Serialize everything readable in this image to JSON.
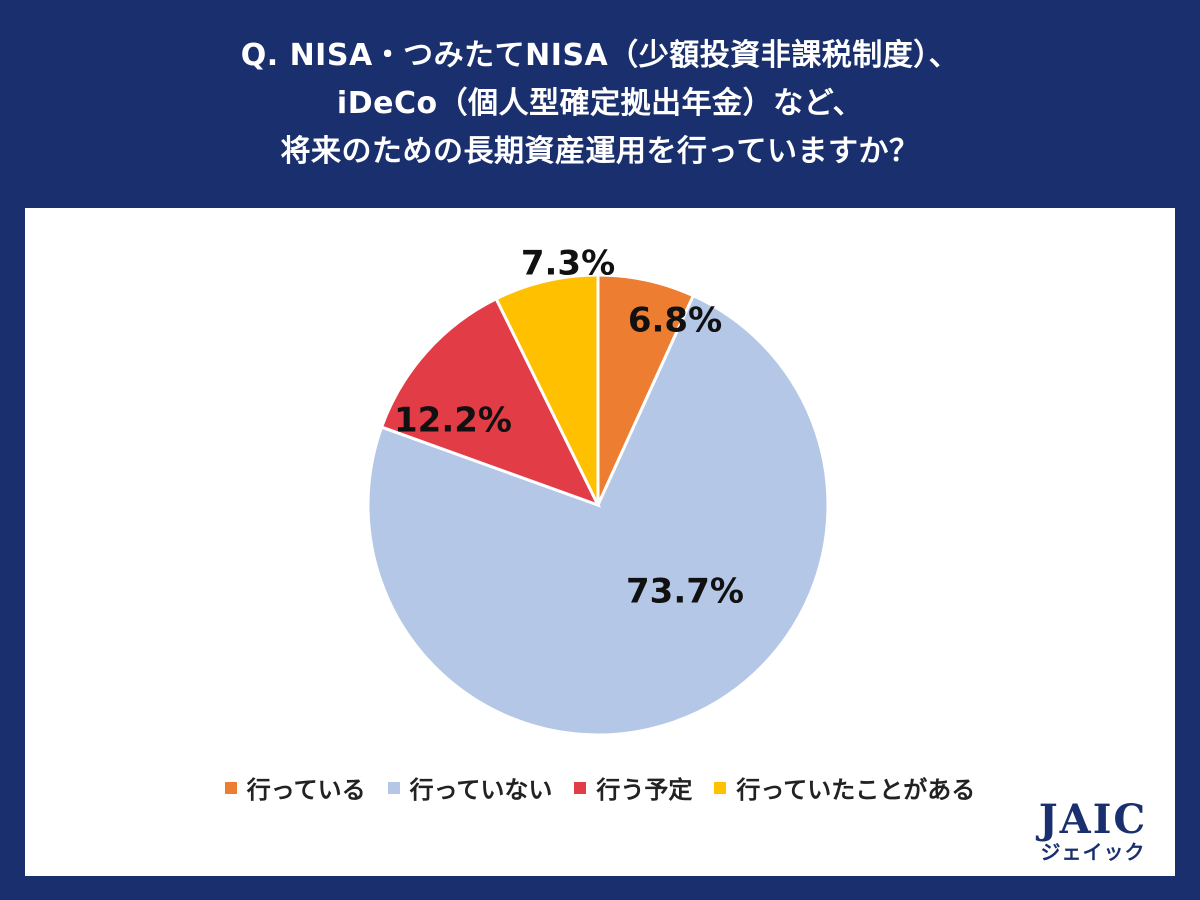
{
  "theme": {
    "background": "#1a2f6e",
    "card": "#ffffff",
    "text_dark": "#111111"
  },
  "header": {
    "question_lines": [
      "Q.  NISA・つみたてNISA（少額投資非課税制度）、",
      "iDeCo（個人型確定拠出年金）など、",
      "将来のための長期資産運用を行っていますか？"
    ]
  },
  "chart_data": {
    "type": "pie",
    "title": "Q.  NISA・つみたてNISA（少額投資非課税制度）、iDeCo（個人型確定拠出年金）など、将来のための長期資産運用を行っていますか？",
    "start": "12 o'clock, clockwise",
    "slices": [
      {
        "label": "行っている",
        "value": 6.8,
        "display": "6.8%",
        "color": "#ed7d31"
      },
      {
        "label": "行っていない",
        "value": 73.7,
        "display": "73.7%",
        "color": "#b4c7e7"
      },
      {
        "label": "行う予定",
        "value": 12.2,
        "display": "12.2%",
        "color": "#e23c47"
      },
      {
        "label": "行っていたことがある",
        "value": 7.3,
        "display": "7.3%",
        "color": "#ffc000"
      }
    ],
    "legend_position": "bottom"
  },
  "logo": {
    "mark": "JAIC",
    "sub": "ジェイック"
  }
}
